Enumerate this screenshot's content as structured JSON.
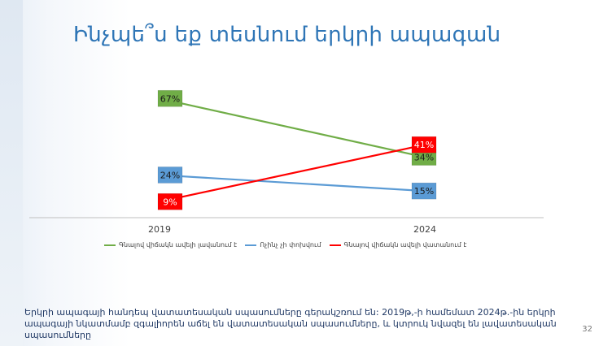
{
  "slide": {
    "title": "Ինչպե՞ս եք տեսնում երկրի ապագան",
    "footer_text": "Երկրի ապագայի հանդեպ վատատեսական սպասումները գերակշռում են: 2019թ,-ի համեմատ 2024թ.-ին երկրի ապագայի նկատմամբ զգալիորեն աճել են վատատեսական սպասումները, և կտրուկ նվազել են լավատեսական սպասումները",
    "page_number": "32"
  },
  "colors": {
    "title": "#2e75b6",
    "green": "#70ad47",
    "blue": "#5b9bd5",
    "red": "#ff0000",
    "axis": "#bfbfbf"
  },
  "chart_data": {
    "type": "line",
    "categories": [
      "2019",
      "2024"
    ],
    "series": [
      {
        "name": "Գնալով վիճակն ավելի լավանում է",
        "values": [
          67,
          34
        ],
        "labels": [
          "67%",
          "34%"
        ],
        "color": "#70ad47"
      },
      {
        "name": "Ոչինչ չի փոխվում",
        "values": [
          24,
          15
        ],
        "labels": [
          "24%",
          "15%"
        ],
        "color": "#5b9bd5"
      },
      {
        "name": "Գնալով վիճակն ավելի վատանում է",
        "values": [
          9,
          41
        ],
        "labels": [
          "9%",
          "41%"
        ],
        "color": "#ff0000"
      }
    ],
    "ylim": [
      0,
      80
    ],
    "legend": "bottom",
    "grid": false
  }
}
